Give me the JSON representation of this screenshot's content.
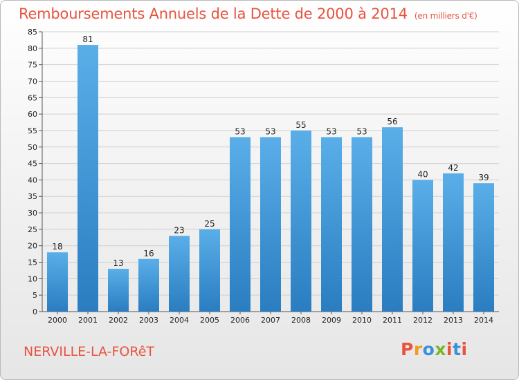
{
  "header": {
    "title": "Remboursements Annuels de la Dette de 2000 à 2014",
    "unit": "(en milliers d'€)"
  },
  "footer": {
    "commune": "NERVILLE-LA-FORêT",
    "logo": "Proxiti",
    "logo_colors": [
      "#e8533f",
      "#f29c1f",
      "#3a8fd9",
      "#79b62b",
      "#e8533f",
      "#3a8fd9",
      "#e8533f"
    ]
  },
  "colors": {
    "bar_light": "#5aaee8",
    "bar_dark": "#2a7dc0",
    "grid": "#cfcfcf",
    "title": "#e8533f"
  },
  "chart_data": {
    "type": "bar",
    "categories": [
      "2000",
      "2001",
      "2002",
      "2003",
      "2004",
      "2005",
      "2006",
      "2007",
      "2008",
      "2009",
      "2010",
      "2011",
      "2012",
      "2013",
      "2014"
    ],
    "values": [
      18,
      81,
      13,
      16,
      23,
      25,
      53,
      53,
      55,
      53,
      53,
      56,
      40,
      42,
      39
    ],
    "ylim": [
      0,
      85
    ],
    "yticks": [
      0,
      5,
      10,
      15,
      20,
      25,
      30,
      35,
      40,
      45,
      50,
      55,
      60,
      65,
      70,
      75,
      80,
      85
    ],
    "grid": true,
    "title": "Remboursements Annuels de la Dette de 2000 à 2014",
    "xlabel": "",
    "ylabel": ""
  }
}
